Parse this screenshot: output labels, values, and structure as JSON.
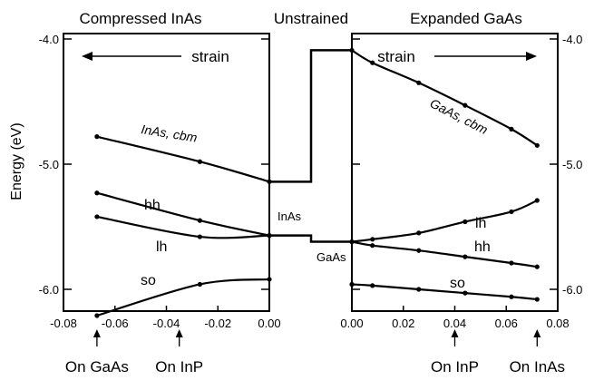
{
  "chart_data": [
    {
      "type": "line",
      "title": "Compressed InAs",
      "ylabel": "Energy (eV)",
      "xlim": [
        -0.08,
        0.0
      ],
      "ylim": [
        -6.25,
        -4.0
      ],
      "xticks": [
        "-0.08",
        "-0.06",
        "-0.04",
        "-0.02",
        "0.00"
      ],
      "yticks": [
        "-4.0",
        "-5.0",
        "-6.0"
      ],
      "yticks_values": [
        -4.0,
        -5.0,
        -6.0
      ],
      "xticks_values": [
        -0.08,
        -0.06,
        -0.04,
        -0.02,
        0.0
      ],
      "annotation": "strain",
      "series": [
        {
          "name": "InAs, cbm",
          "x": [
            -0.067,
            -0.027,
            0.0
          ],
          "y": [
            -4.78,
            -4.98,
            -5.14
          ]
        },
        {
          "name": "hh",
          "x": [
            -0.067,
            -0.027,
            0.0
          ],
          "y": [
            -5.23,
            -5.45,
            -5.57
          ]
        },
        {
          "name": "lh",
          "x": [
            -0.067,
            -0.027,
            0.0
          ],
          "y": [
            -5.42,
            -5.58,
            -5.57
          ]
        },
        {
          "name": "so",
          "x": [
            -0.067,
            -0.027,
            0.0
          ],
          "y": [
            -6.21,
            -5.96,
            -5.92
          ]
        }
      ],
      "markers": [
        {
          "label": "On GaAs",
          "x": -0.067
        },
        {
          "label": "On InP",
          "x": -0.035
        }
      ]
    },
    {
      "type": "line",
      "title": "Unstrained",
      "levels": [
        {
          "label": "InAs",
          "conduction": -5.14,
          "valence": -5.57
        },
        {
          "label": "GaAs",
          "conduction": -4.09,
          "valence": -5.62
        }
      ]
    },
    {
      "type": "line",
      "title": "Expanded GaAs",
      "xlim": [
        0.0,
        0.08
      ],
      "ylim": [
        -6.25,
        -4.0
      ],
      "xticks": [
        "0.00",
        "0.02",
        "0.04",
        "0.06",
        "0.08"
      ],
      "yticks": [
        "-4.0",
        "-5.0",
        "-6.0"
      ],
      "yticks_values": [
        -4.0,
        -5.0,
        -6.0
      ],
      "xticks_values": [
        0.0,
        0.02,
        0.04,
        0.06,
        0.08
      ],
      "annotation": "strain",
      "series": [
        {
          "name": "GaAs, cbm",
          "x": [
            0.0,
            0.008,
            0.026,
            0.044,
            0.062,
            0.072
          ],
          "y": [
            -4.09,
            -4.19,
            -4.35,
            -4.53,
            -4.72,
            -4.85
          ]
        },
        {
          "name": "lh",
          "x": [
            0.0,
            0.008,
            0.026,
            0.044,
            0.062,
            0.072
          ],
          "y": [
            -5.62,
            -5.6,
            -5.55,
            -5.46,
            -5.38,
            -5.29
          ]
        },
        {
          "name": "hh",
          "x": [
            0.0,
            0.008,
            0.026,
            0.044,
            0.062,
            0.072
          ],
          "y": [
            -5.62,
            -5.65,
            -5.69,
            -5.74,
            -5.79,
            -5.82
          ]
        },
        {
          "name": "so",
          "x": [
            0.0,
            0.008,
            0.026,
            0.044,
            0.062,
            0.072
          ],
          "y": [
            -5.96,
            -5.97,
            -6.0,
            -6.03,
            -6.06,
            -6.08
          ]
        }
      ],
      "markers": [
        {
          "label": "On InP",
          "x": 0.04
        },
        {
          "label": "On InAs",
          "x": 0.072
        }
      ]
    }
  ]
}
